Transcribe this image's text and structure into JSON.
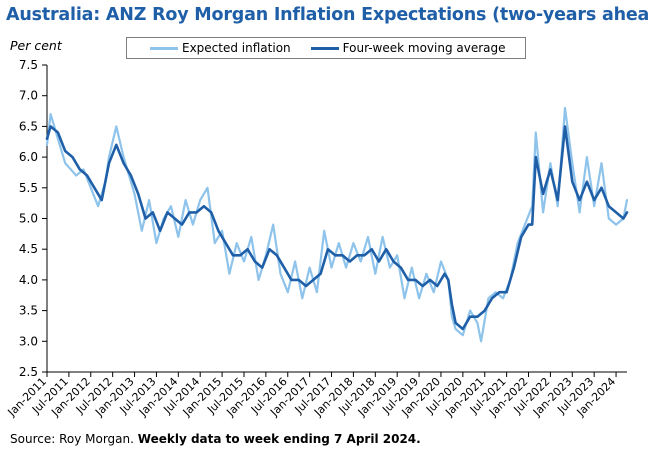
{
  "title": "Australia: ANZ Roy Morgan Inflation Expectations (two-years ahead)",
  "source_prefix": "Source: Roy Morgan.",
  "source_bold": "Weekly data to week ending 7 April 2024.",
  "colors": {
    "expected": "#8ec3eb",
    "moving_average": "#1f5fa8",
    "title": "#1f5fa8",
    "axis": "#000000"
  },
  "chart_data": {
    "type": "line",
    "ylabel": "Per cent",
    "xlabel": "",
    "ylim": [
      2.5,
      7.5
    ],
    "y_ticks": [
      2.5,
      3.0,
      3.5,
      4.0,
      4.5,
      5.0,
      5.5,
      6.0,
      6.5,
      7.0,
      7.5
    ],
    "x_range": [
      "2011-01",
      "2024-04"
    ],
    "x_tick_labels": [
      "Jan-2011",
      "Jul-2011",
      "Jan-2012",
      "Jul-2012",
      "Jan-2013",
      "Jul-2013",
      "Jan-2014",
      "Jul-2014",
      "Jan-2015",
      "Jul-2015",
      "Jan-2016",
      "Jul-2016",
      "Jan-2017",
      "Jul-2017",
      "Jan-2018",
      "Jul-2018",
      "Jan-2019",
      "Jul-2019",
      "Jan-2020",
      "Jul-2020",
      "Jan-2021",
      "Jul-2021",
      "Jan-2022",
      "Jul-2022",
      "Jan-2023",
      "Jul-2023",
      "Jan-2024"
    ],
    "grid": false,
    "legend_position": "top",
    "series": [
      {
        "name": "Expected inflation",
        "color": "#8ec3eb",
        "points": [
          [
            "2011-01",
            6.2
          ],
          [
            "2011-02",
            6.7
          ],
          [
            "2011-04",
            6.3
          ],
          [
            "2011-06",
            5.9
          ],
          [
            "2011-09",
            5.7
          ],
          [
            "2011-11",
            5.8
          ],
          [
            "2012-01",
            5.5
          ],
          [
            "2012-03",
            5.2
          ],
          [
            "2012-05",
            5.6
          ],
          [
            "2012-06",
            6.0
          ],
          [
            "2012-08",
            6.5
          ],
          [
            "2012-10",
            6.0
          ],
          [
            "2012-12",
            5.6
          ],
          [
            "2013-01",
            5.4
          ],
          [
            "2013-03",
            4.8
          ],
          [
            "2013-05",
            5.3
          ],
          [
            "2013-07",
            4.6
          ],
          [
            "2013-09",
            5.0
          ],
          [
            "2013-11",
            5.2
          ],
          [
            "2014-01",
            4.7
          ],
          [
            "2014-03",
            5.3
          ],
          [
            "2014-05",
            4.9
          ],
          [
            "2014-07",
            5.3
          ],
          [
            "2014-09",
            5.5
          ],
          [
            "2014-11",
            4.6
          ],
          [
            "2015-01",
            4.8
          ],
          [
            "2015-03",
            4.1
          ],
          [
            "2015-05",
            4.6
          ],
          [
            "2015-07",
            4.3
          ],
          [
            "2015-09",
            4.7
          ],
          [
            "2015-11",
            4.0
          ],
          [
            "2016-01",
            4.4
          ],
          [
            "2016-03",
            4.9
          ],
          [
            "2016-05",
            4.1
          ],
          [
            "2016-07",
            3.8
          ],
          [
            "2016-09",
            4.3
          ],
          [
            "2016-11",
            3.7
          ],
          [
            "2017-01",
            4.2
          ],
          [
            "2017-03",
            3.8
          ],
          [
            "2017-05",
            4.8
          ],
          [
            "2017-07",
            4.2
          ],
          [
            "2017-09",
            4.6
          ],
          [
            "2017-11",
            4.2
          ],
          [
            "2018-01",
            4.6
          ],
          [
            "2018-03",
            4.3
          ],
          [
            "2018-05",
            4.7
          ],
          [
            "2018-07",
            4.1
          ],
          [
            "2018-09",
            4.7
          ],
          [
            "2018-11",
            4.2
          ],
          [
            "2019-01",
            4.4
          ],
          [
            "2019-03",
            3.7
          ],
          [
            "2019-05",
            4.2
          ],
          [
            "2019-07",
            3.7
          ],
          [
            "2019-09",
            4.1
          ],
          [
            "2019-11",
            3.8
          ],
          [
            "2020-01",
            4.3
          ],
          [
            "2020-03",
            4.0
          ],
          [
            "2020-04",
            3.4
          ],
          [
            "2020-05",
            3.2
          ],
          [
            "2020-07",
            3.1
          ],
          [
            "2020-09",
            3.5
          ],
          [
            "2020-11",
            3.3
          ],
          [
            "2020-12",
            3.0
          ],
          [
            "2021-02",
            3.7
          ],
          [
            "2021-04",
            3.8
          ],
          [
            "2021-06",
            3.7
          ],
          [
            "2021-08",
            4.0
          ],
          [
            "2021-10",
            4.6
          ],
          [
            "2021-12",
            4.9
          ],
          [
            "2022-02",
            5.2
          ],
          [
            "2022-03",
            6.4
          ],
          [
            "2022-05",
            5.1
          ],
          [
            "2022-07",
            5.9
          ],
          [
            "2022-09",
            5.2
          ],
          [
            "2022-11",
            6.8
          ],
          [
            "2023-01",
            5.9
          ],
          [
            "2023-03",
            5.1
          ],
          [
            "2023-05",
            6.0
          ],
          [
            "2023-07",
            5.2
          ],
          [
            "2023-09",
            5.9
          ],
          [
            "2023-11",
            5.0
          ],
          [
            "2024-01",
            4.9
          ],
          [
            "2024-03",
            5.0
          ],
          [
            "2024-04",
            5.3
          ]
        ]
      },
      {
        "name": "Four-week moving average",
        "color": "#1f5fa8",
        "points": [
          [
            "2011-01",
            6.3
          ],
          [
            "2011-02",
            6.5
          ],
          [
            "2011-04",
            6.4
          ],
          [
            "2011-06",
            6.1
          ],
          [
            "2011-08",
            6.0
          ],
          [
            "2011-10",
            5.8
          ],
          [
            "2011-12",
            5.7
          ],
          [
            "2012-02",
            5.5
          ],
          [
            "2012-04",
            5.3
          ],
          [
            "2012-06",
            5.9
          ],
          [
            "2012-08",
            6.2
          ],
          [
            "2012-10",
            5.9
          ],
          [
            "2012-12",
            5.7
          ],
          [
            "2013-02",
            5.4
          ],
          [
            "2013-04",
            5.0
          ],
          [
            "2013-06",
            5.1
          ],
          [
            "2013-08",
            4.8
          ],
          [
            "2013-10",
            5.1
          ],
          [
            "2013-12",
            5.0
          ],
          [
            "2014-02",
            4.9
          ],
          [
            "2014-04",
            5.1
          ],
          [
            "2014-06",
            5.1
          ],
          [
            "2014-08",
            5.2
          ],
          [
            "2014-10",
            5.1
          ],
          [
            "2014-12",
            4.8
          ],
          [
            "2015-02",
            4.6
          ],
          [
            "2015-04",
            4.4
          ],
          [
            "2015-06",
            4.4
          ],
          [
            "2015-08",
            4.5
          ],
          [
            "2015-10",
            4.3
          ],
          [
            "2015-12",
            4.2
          ],
          [
            "2016-02",
            4.5
          ],
          [
            "2016-04",
            4.4
          ],
          [
            "2016-06",
            4.2
          ],
          [
            "2016-08",
            4.0
          ],
          [
            "2016-10",
            4.0
          ],
          [
            "2016-12",
            3.9
          ],
          [
            "2017-02",
            4.0
          ],
          [
            "2017-04",
            4.1
          ],
          [
            "2017-06",
            4.5
          ],
          [
            "2017-08",
            4.4
          ],
          [
            "2017-10",
            4.4
          ],
          [
            "2017-12",
            4.3
          ],
          [
            "2018-02",
            4.4
          ],
          [
            "2018-04",
            4.4
          ],
          [
            "2018-06",
            4.5
          ],
          [
            "2018-08",
            4.3
          ],
          [
            "2018-10",
            4.5
          ],
          [
            "2018-12",
            4.3
          ],
          [
            "2019-02",
            4.2
          ],
          [
            "2019-04",
            4.0
          ],
          [
            "2019-06",
            4.0
          ],
          [
            "2019-08",
            3.9
          ],
          [
            "2019-10",
            4.0
          ],
          [
            "2019-12",
            3.9
          ],
          [
            "2020-02",
            4.1
          ],
          [
            "2020-03",
            4.0
          ],
          [
            "2020-04",
            3.6
          ],
          [
            "2020-05",
            3.3
          ],
          [
            "2020-07",
            3.2
          ],
          [
            "2020-09",
            3.4
          ],
          [
            "2020-11",
            3.4
          ],
          [
            "2021-01",
            3.5
          ],
          [
            "2021-03",
            3.7
          ],
          [
            "2021-05",
            3.8
          ],
          [
            "2021-07",
            3.8
          ],
          [
            "2021-09",
            4.2
          ],
          [
            "2021-11",
            4.7
          ],
          [
            "2022-01",
            4.9
          ],
          [
            "2022-02",
            4.9
          ],
          [
            "2022-03",
            6.0
          ],
          [
            "2022-05",
            5.4
          ],
          [
            "2022-07",
            5.8
          ],
          [
            "2022-09",
            5.3
          ],
          [
            "2022-11",
            6.5
          ],
          [
            "2023-01",
            5.6
          ],
          [
            "2023-03",
            5.3
          ],
          [
            "2023-05",
            5.6
          ],
          [
            "2023-07",
            5.3
          ],
          [
            "2023-09",
            5.5
          ],
          [
            "2023-11",
            5.2
          ],
          [
            "2024-01",
            5.1
          ],
          [
            "2024-03",
            5.0
          ],
          [
            "2024-04",
            5.1
          ]
        ]
      }
    ]
  }
}
